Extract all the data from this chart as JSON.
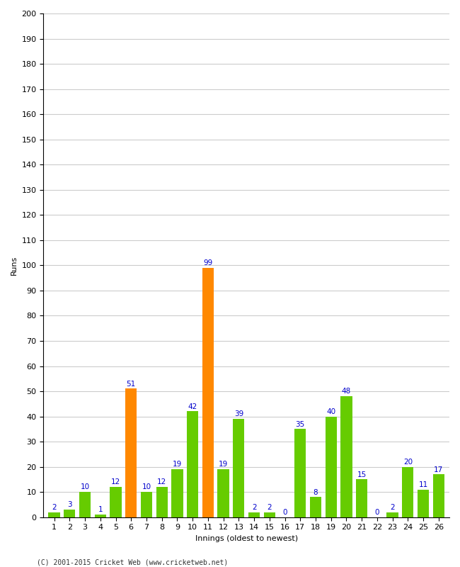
{
  "values": [
    2,
    3,
    10,
    1,
    12,
    51,
    10,
    12,
    19,
    42,
    99,
    19,
    39,
    2,
    2,
    0,
    35,
    8,
    40,
    48,
    15,
    0,
    2,
    20,
    11,
    17
  ],
  "innings": [
    1,
    2,
    3,
    4,
    5,
    6,
    7,
    8,
    9,
    10,
    11,
    12,
    13,
    14,
    15,
    16,
    17,
    18,
    19,
    20,
    21,
    22,
    23,
    24,
    25,
    26
  ],
  "orange_innings": [
    6,
    11
  ],
  "bar_color_green": "#66cc00",
  "bar_color_orange": "#ff8800",
  "xlabel": "Innings (oldest to newest)",
  "ylabel": "Runs",
  "ylim": [
    0,
    200
  ],
  "yticks": [
    0,
    10,
    20,
    30,
    40,
    50,
    60,
    70,
    80,
    90,
    100,
    110,
    120,
    130,
    140,
    150,
    160,
    170,
    180,
    190,
    200
  ],
  "label_color": "#0000cc",
  "label_fontsize": 7.5,
  "axis_fontsize": 8,
  "copyright": "(C) 2001-2015 Cricket Web (www.cricketweb.net)",
  "background_color": "#ffffff",
  "grid_color": "#cccccc",
  "bar_width": 0.75
}
